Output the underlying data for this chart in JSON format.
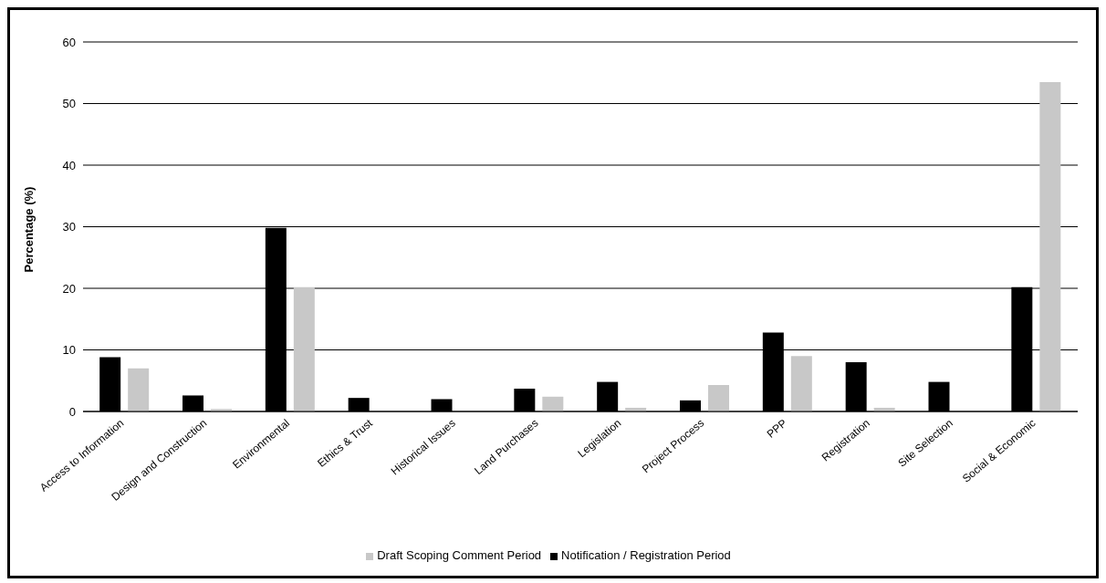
{
  "chart_data": {
    "type": "bar",
    "ylabel": "Percentage (%)",
    "categories": [
      "Access to Information",
      "Design and Construction",
      "Environmental",
      "Ethics & Trust",
      "Historical Issues",
      "Land Purchases",
      "Legislation",
      "Project Process",
      "PPP",
      "Registration",
      "Site Selection",
      "Social & Economic"
    ],
    "series": [
      {
        "name": "Notification / Registration Period",
        "color": "#000000",
        "values": [
          8.8,
          2.6,
          29.8,
          2.2,
          2,
          3.7,
          4.8,
          1.8,
          12.8,
          8,
          4.8,
          20.2
        ]
      },
      {
        "name": "Draft Scoping Comment Period",
        "color": "#c8c8c8",
        "values": [
          7,
          0.4,
          20.2,
          0,
          0,
          2.4,
          0.6,
          4.3,
          9,
          0.6,
          0,
          53.5
        ]
      }
    ],
    "ylim": [
      0,
      60
    ],
    "yticks": [
      0,
      10,
      20,
      30,
      40,
      50,
      60
    ],
    "grid": "y",
    "legend": "bottom"
  }
}
